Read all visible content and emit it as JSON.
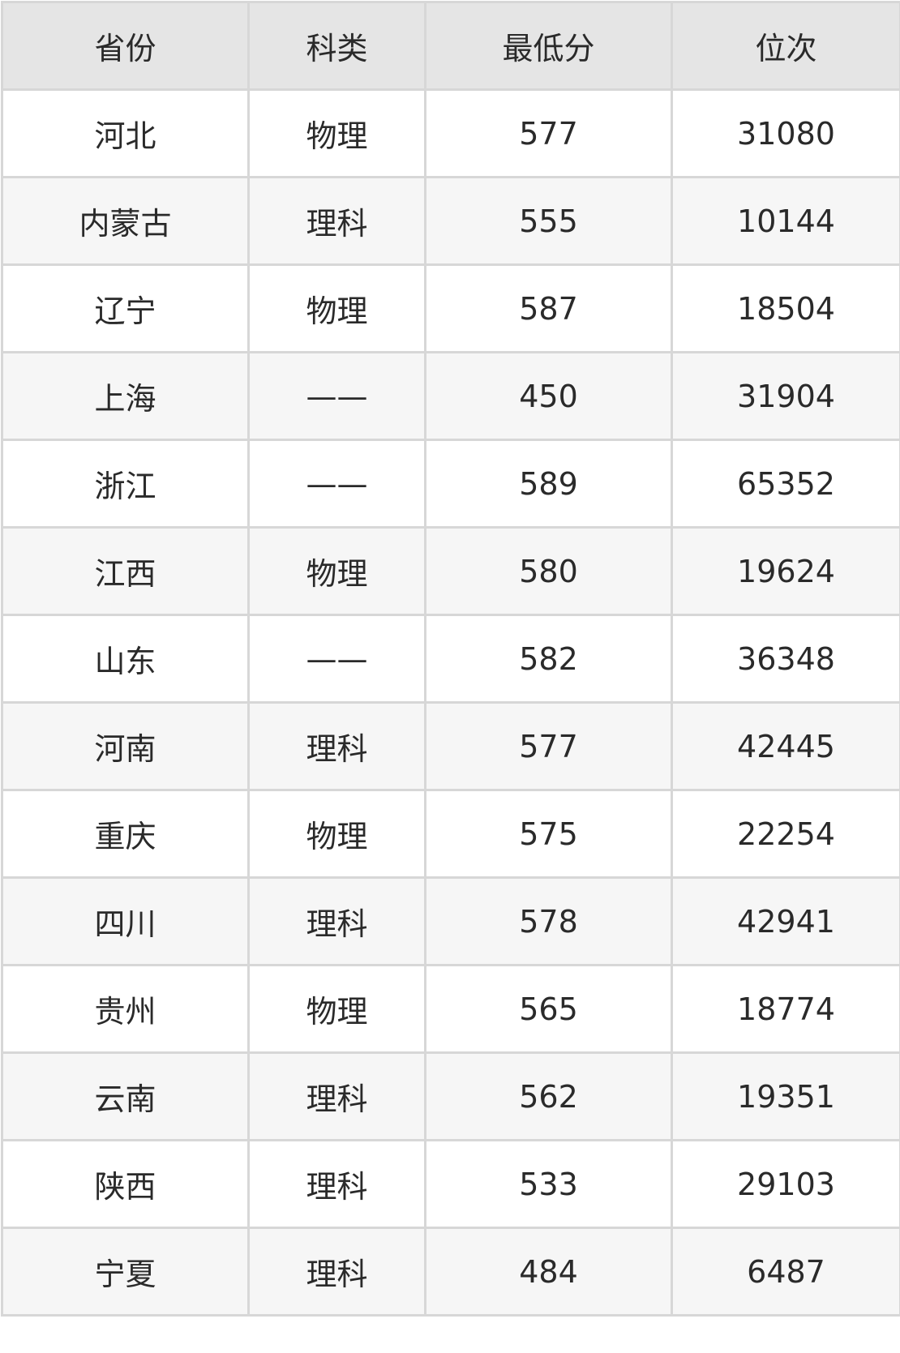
{
  "headers": [
    "省份",
    "科类",
    "最低分",
    "位次"
  ],
  "rows": [
    [
      "河北",
      "物理",
      "577",
      "31080"
    ],
    [
      "内蒙古",
      "理科",
      "555",
      "10144"
    ],
    [
      "辽宁",
      "物理",
      "587",
      "18504"
    ],
    [
      "上海",
      "——",
      "450",
      "31904"
    ],
    [
      "浙江",
      "——",
      "589",
      "65352"
    ],
    [
      "江西",
      "物理",
      "580",
      "19624"
    ],
    [
      "山东",
      "——",
      "582",
      "36348"
    ],
    [
      "河南",
      "理科",
      "577",
      "42445"
    ],
    [
      "重庆",
      "物理",
      "575",
      "22254"
    ],
    [
      "四川",
      "理科",
      "578",
      "42941"
    ],
    [
      "贵州",
      "物理",
      "565",
      "18774"
    ],
    [
      "云南",
      "理科",
      "562",
      "19351"
    ],
    [
      "陕西",
      "理科",
      "533",
      "29103"
    ],
    [
      "宁夏",
      "理科",
      "484",
      "6487"
    ]
  ]
}
